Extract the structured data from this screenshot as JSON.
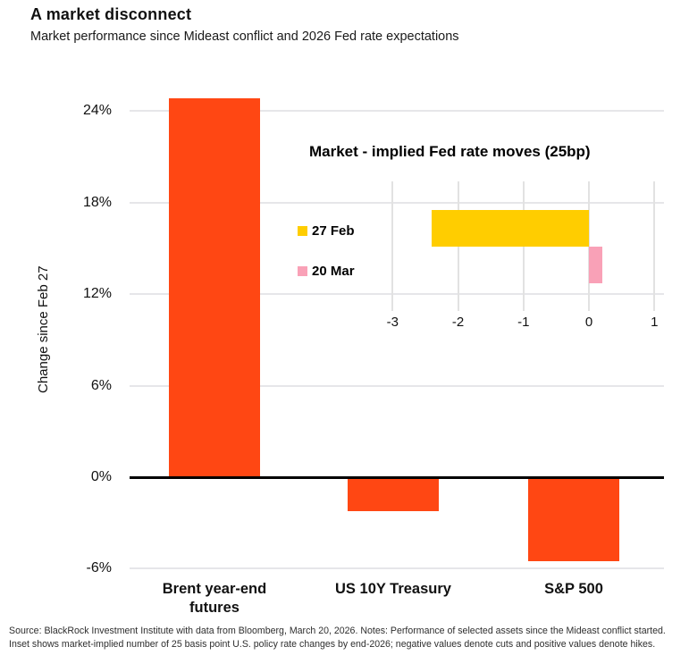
{
  "header": {
    "title": "A market disconnect",
    "subtitle": "Market performance since Mideast conflict and 2026 Fed rate expectations"
  },
  "colors": {
    "orange": "#FF4713",
    "yellow": "#FFCD00",
    "pink": "#F9A1B7",
    "gridline": "#E6E6E9",
    "zero_line": "#000000"
  },
  "chart_data": [
    {
      "id": "main",
      "type": "bar",
      "orientation": "vertical",
      "ylabel": "Change since Feb 27",
      "categories": [
        "Brent year-end futures",
        "US 10Y Treasury",
        "S&P 500"
      ],
      "values": [
        24.8,
        -2.2,
        -5.5
      ],
      "bar_color": "#FF4713",
      "yticks": [
        24,
        18,
        12,
        6,
        0,
        -6
      ],
      "ytick_labels": [
        "24%",
        "18%",
        "12%",
        "6%",
        "0%",
        "-6%"
      ],
      "ylim": [
        -6.5,
        25
      ],
      "grid": "horizontal gridlines at ticks, bold black zero line",
      "legend": "none"
    },
    {
      "id": "inset",
      "type": "bar",
      "orientation": "horizontal",
      "title": "Market - implied Fed rate moves (25bp)",
      "series": [
        {
          "name": "27 Feb",
          "value": -2.4,
          "color": "#FFCD00"
        },
        {
          "name": "20 Mar",
          "value": 0.2,
          "color": "#F9A1B7"
        }
      ],
      "xticks": [
        -3,
        -2,
        -1,
        0,
        1
      ],
      "xtick_labels": [
        "-3",
        "-2",
        "-1",
        "0",
        "1"
      ],
      "xlim": [
        -3.5,
        1.5
      ],
      "grid": "vertical gridlines at ticks",
      "legend_position": "left"
    }
  ],
  "footer": {
    "source_text": "Source: BlackRock Investment Institute with data from Bloomberg, March 20, 2026. Notes: Performance of selected assets since the Mideast conflict started. Inset shows market-implied number of 25 basis point U.S. policy rate changes by end-2026; negative values denote cuts and positive values denote hikes."
  }
}
